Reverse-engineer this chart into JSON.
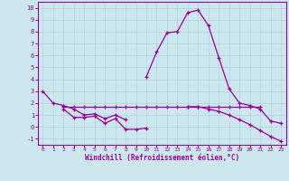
{
  "background_color": "#cce8ee",
  "line_color": "#990099",
  "grid_color": "#aaccdd",
  "xlabel": "Windchill (Refroidissement éolien,°C)",
  "ylim": [
    -1.5,
    10.5
  ],
  "xlim": [
    -0.5,
    23.5
  ],
  "yticks": [
    -1,
    0,
    1,
    2,
    3,
    4,
    5,
    6,
    7,
    8,
    9,
    10
  ],
  "xticks": [
    0,
    1,
    2,
    3,
    4,
    5,
    6,
    7,
    8,
    9,
    10,
    11,
    12,
    13,
    14,
    15,
    16,
    17,
    18,
    19,
    20,
    21,
    22,
    23
  ],
  "series": [
    {
      "x": [
        0,
        1,
        2,
        3,
        4,
        5,
        6,
        7,
        8
      ],
      "y": [
        3.0,
        2.0,
        1.8,
        1.5,
        1.0,
        1.1,
        0.7,
        1.0,
        0.6
      ]
    },
    {
      "x": [
        2,
        3,
        4,
        5,
        6,
        7,
        8,
        9,
        10
      ],
      "y": [
        1.5,
        0.8,
        0.8,
        0.9,
        0.3,
        0.7,
        -0.2,
        -0.2,
        -0.1
      ]
    },
    {
      "x": [
        2,
        3,
        4,
        5,
        6,
        7,
        8,
        9,
        10,
        11,
        12,
        13,
        14,
        15,
        16,
        17,
        18,
        19,
        20,
        21
      ],
      "y": [
        1.7,
        1.7,
        1.7,
        1.7,
        1.7,
        1.7,
        1.7,
        1.7,
        1.7,
        1.7,
        1.7,
        1.7,
        1.7,
        1.7,
        1.7,
        1.7,
        1.7,
        1.7,
        1.7,
        1.7
      ]
    },
    {
      "x": [
        10,
        11,
        12,
        13,
        14,
        15,
        16,
        17,
        18,
        19,
        20,
        21,
        22,
        23
      ],
      "y": [
        4.2,
        6.3,
        7.9,
        8.0,
        9.6,
        9.8,
        8.5,
        5.8,
        3.2,
        2.0,
        1.8,
        1.5,
        0.5,
        0.3
      ]
    },
    {
      "x": [
        14,
        15,
        16,
        17,
        18,
        19,
        20,
        21,
        22,
        23
      ],
      "y": [
        1.7,
        1.7,
        1.5,
        1.3,
        1.0,
        0.6,
        0.2,
        -0.3,
        -0.8,
        -1.2
      ]
    }
  ]
}
